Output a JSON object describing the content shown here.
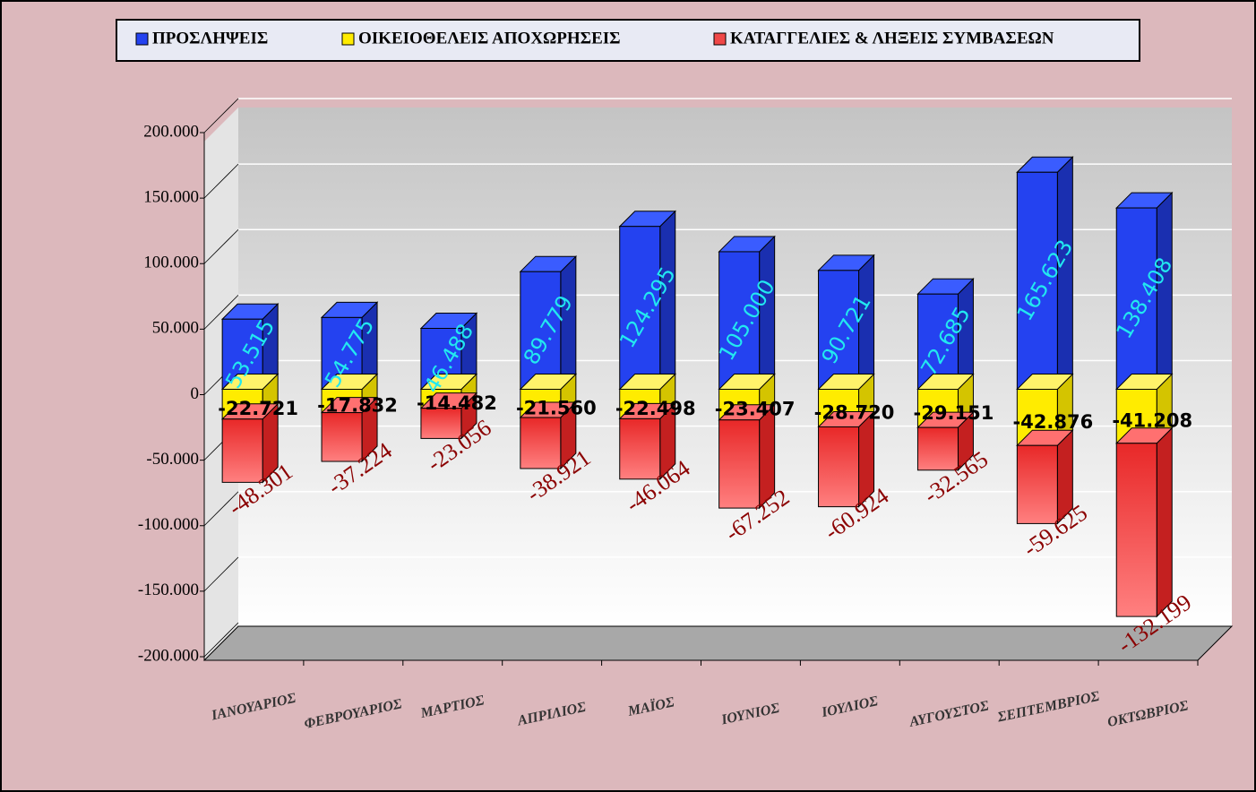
{
  "chart_data": {
    "type": "bar3d-stacked",
    "categories": [
      "ΙΑΝΟΥΑΡΙΟΣ",
      "ΦΕΒΡΟΥΑΡΙΟΣ",
      "ΜΑΡΤΙΟΣ",
      "ΑΠΡΙΛΙΟΣ",
      "ΜΑΪΟΣ",
      "ΙΟΥΝΙΟΣ",
      "ΙΟΥΛΙΟΣ",
      "ΑΥΓΟΥΣΤΟΣ",
      "ΣΕΠΤΕΜΒΡΙΟΣ",
      "ΟΚΤΩΒΡΙΟΣ"
    ],
    "series": [
      {
        "name": "ΠΡΟΣΛΗΨΕΙΣ",
        "color": "#2442f0",
        "values": [
          53515,
          54775,
          46488,
          89779,
          124295,
          105000,
          90721,
          72685,
          165623,
          138408
        ],
        "value_labels": [
          "53.515",
          "54.775",
          "46.488",
          "89.779",
          "124.295",
          "105.000",
          "90.721",
          "72.685",
          "165.623",
          "138.408"
        ]
      },
      {
        "name": "ΟΙΚΕΙΟΘΕΛΕΙΣ ΑΠΟΧΩΡΗΣΕΙΣ",
        "color": "#ffec00",
        "values": [
          -22721,
          -17832,
          -14482,
          -21560,
          -22498,
          -23407,
          -28720,
          -29151,
          -42876,
          -41208
        ],
        "value_labels": [
          "-22.721",
          "-17.832",
          "-14.482",
          "-21.560",
          "-22.498",
          "-23.407",
          "-28.720",
          "-29.151",
          "-42.876",
          "-41.208"
        ]
      },
      {
        "name": "ΚΑΤΑΓΓΕΛΙΕΣ & ΛΗΞΕΙΣ ΣΥΜΒΑΣΕΩΝ",
        "color": "#f04848",
        "values": [
          -48301,
          -37224,
          -23056,
          -38921,
          -46064,
          -67252,
          -60924,
          -32565,
          -59625,
          -132199
        ],
        "value_labels": [
          "-48.301",
          "-37.224",
          "-23.056",
          "-38.921",
          "-46.064",
          "-67.252",
          "-60.924",
          "-32.565",
          "-59.625",
          "-132.199"
        ]
      }
    ],
    "ylim": [
      -200000,
      200000
    ],
    "yticks": [
      {
        "value": 200000,
        "label": "200.000"
      },
      {
        "value": 150000,
        "label": "150.000"
      },
      {
        "value": 100000,
        "label": "100.000"
      },
      {
        "value": 50000,
        "label": "50.000"
      },
      0,
      {
        "value": -50000,
        "label": "-50.000"
      },
      {
        "value": -100000,
        "label": "-100.000"
      },
      {
        "value": -150000,
        "label": "-150.000"
      },
      {
        "value": -200000,
        "label": "-200.000"
      }
    ],
    "grid": true,
    "legend": "top"
  }
}
